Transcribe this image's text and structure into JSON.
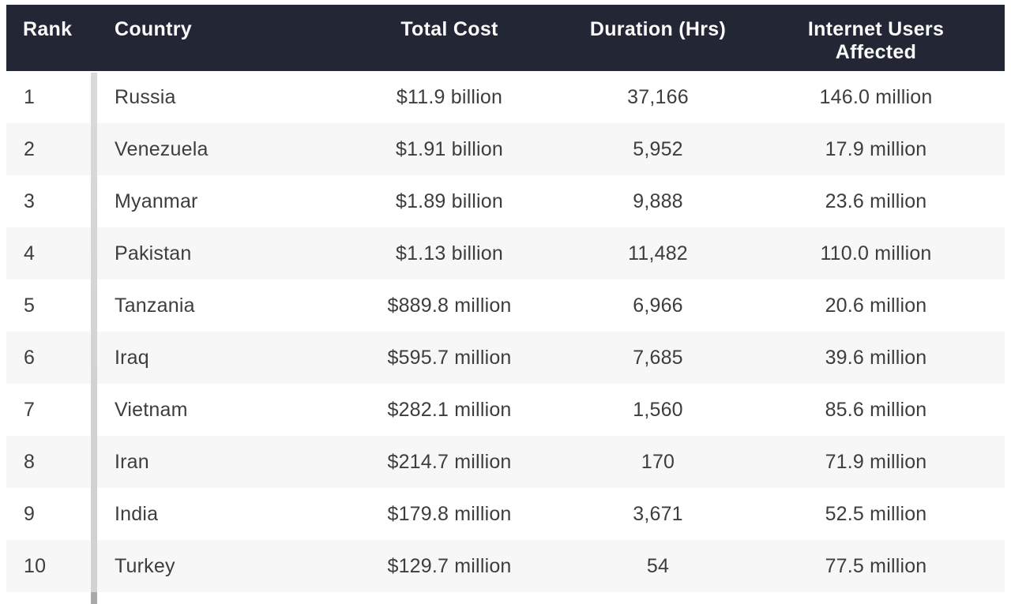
{
  "chart_data": {
    "type": "table",
    "columns": [
      {
        "key": "rank",
        "label": "Rank",
        "align": "left"
      },
      {
        "key": "country",
        "label": "Country",
        "align": "left"
      },
      {
        "key": "total_cost",
        "label": "Total Cost",
        "align": "center"
      },
      {
        "key": "duration_hrs",
        "label": "Duration (Hrs)",
        "align": "center"
      },
      {
        "key": "users_affected",
        "label": "Internet Users Affected",
        "align": "center"
      }
    ],
    "rows": [
      {
        "rank": "1",
        "country": "Russia",
        "total_cost": "$11.9 billion",
        "duration_hrs": "37,166",
        "users_affected": "146.0 million"
      },
      {
        "rank": "2",
        "country": "Venezuela",
        "total_cost": "$1.91 billion",
        "duration_hrs": "5,952",
        "users_affected": "17.9 million"
      },
      {
        "rank": "3",
        "country": "Myanmar",
        "total_cost": "$1.89 billion",
        "duration_hrs": "9,888",
        "users_affected": "23.6 million"
      },
      {
        "rank": "4",
        "country": "Pakistan",
        "total_cost": "$1.13 billion",
        "duration_hrs": "11,482",
        "users_affected": "110.0 million"
      },
      {
        "rank": "5",
        "country": "Tanzania",
        "total_cost": "$889.8 million",
        "duration_hrs": "6,966",
        "users_affected": "20.6 million"
      },
      {
        "rank": "6",
        "country": "Iraq",
        "total_cost": "$595.7 million",
        "duration_hrs": "7,685",
        "users_affected": "39.6 million"
      },
      {
        "rank": "7",
        "country": "Vietnam",
        "total_cost": "$282.1 million",
        "duration_hrs": "1,560",
        "users_affected": "85.6 million"
      },
      {
        "rank": "8",
        "country": "Iran",
        "total_cost": "$214.7 million",
        "duration_hrs": "170",
        "users_affected": "71.9 million"
      },
      {
        "rank": "9",
        "country": "India",
        "total_cost": "$179.8 million",
        "duration_hrs": "3,671",
        "users_affected": "52.5 million"
      },
      {
        "rank": "10",
        "country": "Turkey",
        "total_cost": "$129.7 million",
        "duration_hrs": "54",
        "users_affected": "77.5 million"
      }
    ]
  },
  "colors": {
    "header_bg": "#232634",
    "header_text": "#fafafa",
    "body_text": "#3d3d3f",
    "row_bg": "#ffffff",
    "row_alt_bg": "#f7f7f8",
    "divider": "#d2d2d2",
    "divider_bottom": "#a9a9a9"
  }
}
